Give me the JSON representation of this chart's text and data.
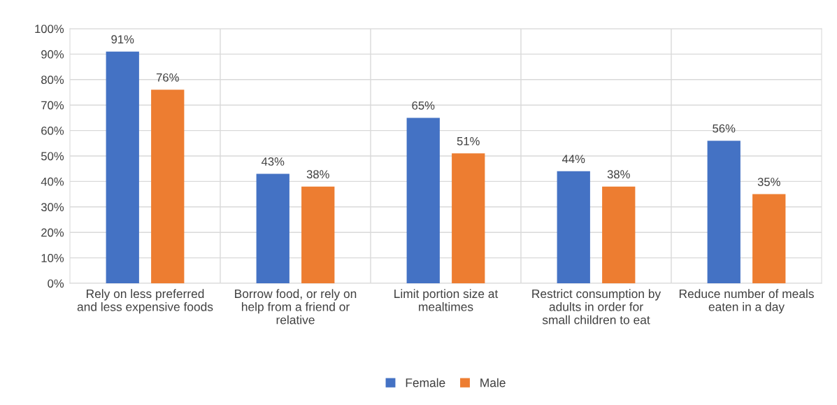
{
  "chart_data": {
    "type": "bar",
    "categories": [
      "Rely on less preferred and less expensive foods",
      "Borrow food, or rely on help from a friend or relative",
      "Limit portion size at mealtimes",
      "Restrict consumption by adults in order for small children to eat",
      "Reduce number of meals eaten in a day"
    ],
    "series": [
      {
        "name": "Female",
        "color": "#4472c4",
        "values": [
          91,
          43,
          65,
          44,
          56
        ],
        "value_labels": [
          "91%",
          "43%",
          "65%",
          "44%",
          "56%"
        ]
      },
      {
        "name": "Male",
        "color": "#ed7d31",
        "values": [
          76,
          38,
          51,
          38,
          35
        ],
        "value_labels": [
          "76%",
          "38%",
          "51%",
          "38%",
          "35%"
        ]
      }
    ],
    "ylim": [
      0,
      100
    ],
    "yticks": [
      {
        "value": 0,
        "label": "0%"
      },
      {
        "value": 10,
        "label": "10%"
      },
      {
        "value": 20,
        "label": "20%"
      },
      {
        "value": 30,
        "label": "30%"
      },
      {
        "value": 40,
        "label": "40%"
      },
      {
        "value": 50,
        "label": "50%"
      },
      {
        "value": 60,
        "label": "60%"
      },
      {
        "value": 70,
        "label": "70%"
      },
      {
        "value": 80,
        "label": "80%"
      },
      {
        "value": 90,
        "label": "90%"
      },
      {
        "value": 100,
        "label": "100%"
      }
    ],
    "grid": true,
    "legend": "bottom"
  }
}
